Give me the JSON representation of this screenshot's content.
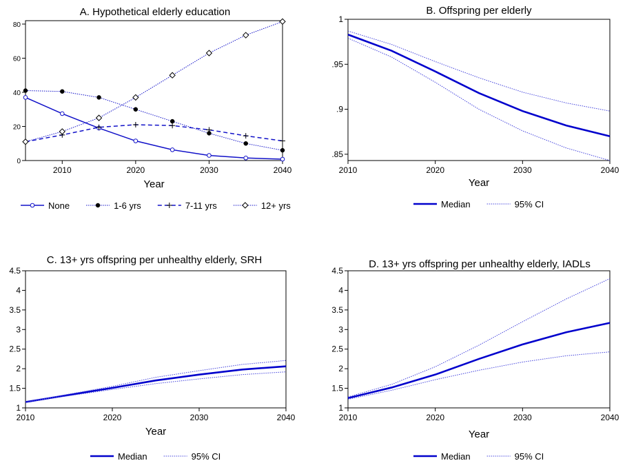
{
  "chart_data": [
    {
      "type": "line",
      "title": "A. Hypothetical elderly education",
      "xlabel": "Year",
      "ylabel": "",
      "xlim": [
        2005,
        2040
      ],
      "ylim": [
        0,
        82
      ],
      "x_ticks": [
        2010,
        2020,
        2030,
        2040
      ],
      "y_ticks": [
        0,
        20,
        40,
        60,
        80
      ],
      "x_tick_labels": [
        "2010",
        "2020",
        "2030",
        "2040"
      ],
      "y_tick_labels": [
        "0",
        "20",
        "40",
        "60",
        "80"
      ],
      "x": [
        2005,
        2010,
        2015,
        2020,
        2025,
        2030,
        2035,
        2040
      ],
      "legend_position": "bottom",
      "series": [
        {
          "name": "None",
          "color": "#1010c8",
          "style": "solid",
          "marker": "circle-open",
          "values": [
            37,
            27.5,
            19,
            11.5,
            6.3,
            3,
            1.5,
            0.8
          ]
        },
        {
          "name": "1-6 yrs",
          "color": "#1010c8",
          "style": "dotted",
          "marker": "circle-filled",
          "values": [
            41,
            40.5,
            37,
            30,
            23,
            16,
            10,
            6
          ]
        },
        {
          "name": "7-11 yrs",
          "color": "#1010c8",
          "style": "dashed",
          "marker": "plus",
          "values": [
            11,
            15,
            19.5,
            21,
            20.5,
            18,
            14.5,
            11.5
          ]
        },
        {
          "name": "12+ yrs",
          "color": "#1010c8",
          "style": "dotted",
          "marker": "diamond-open",
          "values": [
            11,
            17,
            25,
            37,
            50,
            63,
            73.5,
            81.5
          ]
        }
      ]
    },
    {
      "type": "line",
      "title": "B. Offspring per elderly",
      "xlabel": "Year",
      "ylabel": "",
      "xlim": [
        2010,
        2040
      ],
      "ylim": [
        0.843,
        1.0
      ],
      "x_ticks": [
        2010,
        2020,
        2030,
        2040
      ],
      "y_ticks": [
        0.85,
        0.9,
        0.95,
        1
      ],
      "x_tick_labels": [
        "2010",
        "2020",
        "2030",
        "2040"
      ],
      "y_tick_labels": [
        ".85",
        ".9",
        ".95",
        "1"
      ],
      "x": [
        2010,
        2015,
        2020,
        2025,
        2030,
        2035,
        2040
      ],
      "legend_position": "bottom",
      "series": [
        {
          "name": "Median",
          "color": "#0000cc",
          "style": "solid-thick",
          "values": [
            0.983,
            0.965,
            0.942,
            0.918,
            0.898,
            0.882,
            0.87
          ]
        },
        {
          "name": "95% CI",
          "color": "#4444dd",
          "style": "dotted",
          "values": [
            0.987,
            0.972,
            0.953,
            0.935,
            0.919,
            0.907,
            0.898
          ]
        },
        {
          "name": "",
          "color": "#4444dd",
          "style": "dotted",
          "values": [
            0.979,
            0.958,
            0.93,
            0.9,
            0.876,
            0.857,
            0.843
          ]
        }
      ]
    },
    {
      "type": "line",
      "title": "C. 13+ yrs offspring per unhealthy elderly, SRH",
      "xlabel": "Year",
      "ylabel": "",
      "xlim": [
        2010,
        2040
      ],
      "ylim": [
        1,
        4.5
      ],
      "x_ticks": [
        2010,
        2020,
        2030,
        2040
      ],
      "y_ticks": [
        1,
        1.5,
        2,
        2.5,
        3,
        3.5,
        4,
        4.5
      ],
      "x_tick_labels": [
        "2010",
        "2020",
        "2030",
        "2040"
      ],
      "y_tick_labels": [
        "1",
        "1.5",
        "2",
        "2.5",
        "3",
        "3.5",
        "4",
        "4.5"
      ],
      "x": [
        2010,
        2015,
        2020,
        2025,
        2030,
        2035,
        2040
      ],
      "legend_position": "bottom",
      "series": [
        {
          "name": "Median",
          "color": "#0000cc",
          "style": "solid-thick",
          "values": [
            1.15,
            1.33,
            1.51,
            1.7,
            1.85,
            1.98,
            2.06
          ]
        },
        {
          "name": "95% CI",
          "color": "#4444dd",
          "style": "dotted",
          "values": [
            1.15,
            1.35,
            1.55,
            1.78,
            1.95,
            2.11,
            2.21
          ]
        },
        {
          "name": "",
          "color": "#4444dd",
          "style": "dotted",
          "values": [
            1.15,
            1.31,
            1.47,
            1.62,
            1.74,
            1.85,
            1.92
          ]
        }
      ]
    },
    {
      "type": "line",
      "title": "D. 13+ yrs offspring per unhealthy elderly, IADLs",
      "xlabel": "Year",
      "ylabel": "",
      "xlim": [
        2010,
        2040
      ],
      "ylim": [
        1,
        4.5
      ],
      "x_ticks": [
        2010,
        2020,
        2030,
        2040
      ],
      "y_ticks": [
        1,
        1.5,
        2,
        2.5,
        3,
        3.5,
        4,
        4.5
      ],
      "x_tick_labels": [
        "2010",
        "2020",
        "2030",
        "2040"
      ],
      "y_tick_labels": [
        "1",
        "1.5",
        "2",
        "2.5",
        "3",
        "3.5",
        "4",
        "4.5"
      ],
      "x": [
        2010,
        2015,
        2020,
        2025,
        2030,
        2035,
        2040
      ],
      "legend_position": "bottom",
      "series": [
        {
          "name": "Median",
          "color": "#0000cc",
          "style": "solid-thick",
          "values": [
            1.25,
            1.52,
            1.85,
            2.25,
            2.62,
            2.93,
            3.17
          ]
        },
        {
          "name": "95% CI",
          "color": "#4444dd",
          "style": "dotted",
          "values": [
            1.28,
            1.6,
            2.05,
            2.6,
            3.2,
            3.78,
            4.3
          ]
        },
        {
          "name": "",
          "color": "#4444dd",
          "style": "dotted",
          "values": [
            1.22,
            1.45,
            1.72,
            1.96,
            2.17,
            2.33,
            2.43
          ]
        }
      ]
    }
  ]
}
